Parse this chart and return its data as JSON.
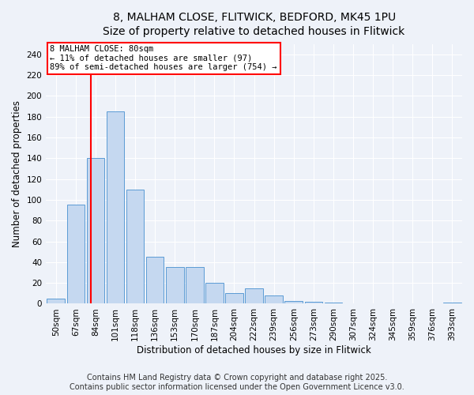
{
  "title_line1": "8, MALHAM CLOSE, FLITWICK, BEDFORD, MK45 1PU",
  "title_line2": "Size of property relative to detached houses in Flitwick",
  "xlabel": "Distribution of detached houses by size in Flitwick",
  "ylabel": "Number of detached properties",
  "categories": [
    "50sqm",
    "67sqm",
    "84sqm",
    "101sqm",
    "118sqm",
    "136sqm",
    "153sqm",
    "170sqm",
    "187sqm",
    "204sqm",
    "222sqm",
    "239sqm",
    "256sqm",
    "273sqm",
    "290sqm",
    "307sqm",
    "324sqm",
    "345sqm",
    "359sqm",
    "376sqm",
    "393sqm"
  ],
  "values": [
    5,
    95,
    140,
    185,
    110,
    45,
    35,
    35,
    20,
    10,
    15,
    8,
    3,
    2,
    1,
    0,
    0,
    0,
    0,
    0,
    1
  ],
  "bar_color": "#c5d8f0",
  "bar_edge_color": "#5b9bd5",
  "property_line_label": "8 MALHAM CLOSE: 80sqm",
  "annotation_line1": "← 11% of detached houses are smaller (97)",
  "annotation_line2": "89% of semi-detached houses are larger (754) →",
  "annotation_box_color": "white",
  "annotation_box_edge_color": "red",
  "vline_color": "red",
  "ylim": [
    0,
    250
  ],
  "yticks": [
    0,
    20,
    40,
    60,
    80,
    100,
    120,
    140,
    160,
    180,
    200,
    220,
    240
  ],
  "footer": "Contains HM Land Registry data © Crown copyright and database right 2025.\nContains public sector information licensed under the Open Government Licence v3.0.",
  "bg_color": "#eef2f9",
  "grid_color": "#ffffff",
  "title_fontsize": 10,
  "axis_label_fontsize": 8.5,
  "tick_fontsize": 7.5,
  "footer_fontsize": 7
}
